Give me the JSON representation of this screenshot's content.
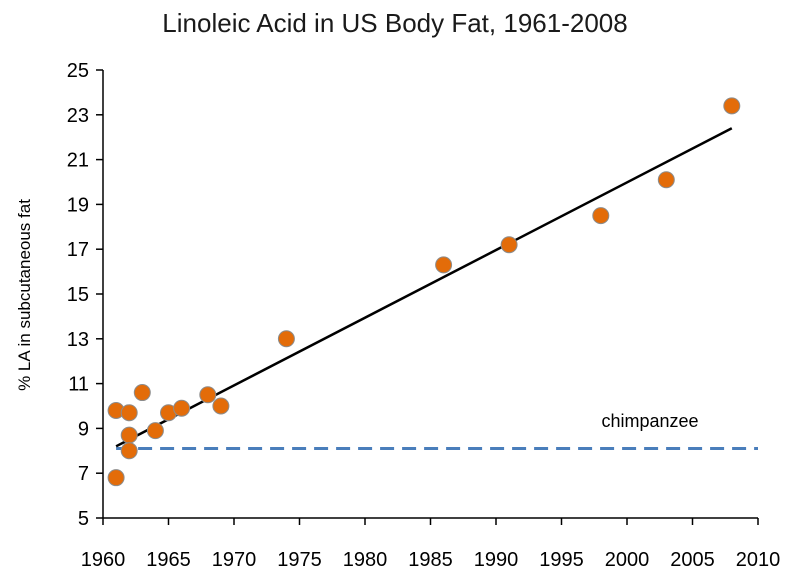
{
  "chart_data": {
    "type": "scatter",
    "title": "Linoleic Acid in US Body Fat, 1961-2008",
    "xlabel": "",
    "ylabel": "% LA in subcutaneous fat",
    "xlim": [
      1960,
      2010
    ],
    "ylim": [
      5,
      25
    ],
    "x_ticks": [
      "1960",
      "1965",
      "1970",
      "1975",
      "1980",
      "1985",
      "1990",
      "1995",
      "2000",
      "2005",
      "2010"
    ],
    "y_ticks": [
      "5",
      "7",
      "9",
      "11",
      "13",
      "15",
      "17",
      "19",
      "21",
      "23",
      "25"
    ],
    "grid": false,
    "series": [
      {
        "points": [
          {
            "x": 1961,
            "y": 9.8
          },
          {
            "x": 1961,
            "y": 6.8
          },
          {
            "x": 1962,
            "y": 9.7
          },
          {
            "x": 1962,
            "y": 8.7
          },
          {
            "x": 1962,
            "y": 8.0
          },
          {
            "x": 1963,
            "y": 10.6
          },
          {
            "x": 1964,
            "y": 8.9
          },
          {
            "x": 1965,
            "y": 9.7
          },
          {
            "x": 1966,
            "y": 9.9
          },
          {
            "x": 1968,
            "y": 10.5
          },
          {
            "x": 1969,
            "y": 10.0
          },
          {
            "x": 1974,
            "y": 13.0
          },
          {
            "x": 1986,
            "y": 16.3
          },
          {
            "x": 1991,
            "y": 17.2
          },
          {
            "x": 1998,
            "y": 18.5
          },
          {
            "x": 2003,
            "y": 20.1
          },
          {
            "x": 2008,
            "y": 23.4
          }
        ]
      }
    ],
    "trendline": {
      "x": [
        1961,
        2008
      ],
      "y": [
        8.2,
        22.4
      ]
    },
    "reference_line": {
      "y": 8.1,
      "label": "chimpanzee"
    },
    "colors": {
      "points": "#e36c09",
      "point_edge": "#8c8c8c",
      "trendline": "#000000",
      "reference_line": "#4a7ebb",
      "axes": "#000000"
    }
  }
}
